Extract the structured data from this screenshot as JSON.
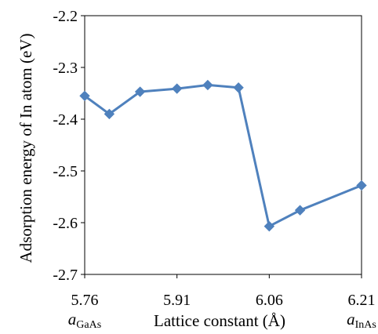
{
  "chart_data": {
    "type": "line",
    "xlabel": "Lattice constant (Å)",
    "ylabel": "Adsorption energy of In atom (eV)",
    "xlim": [
      5.76,
      6.21
    ],
    "ylim": [
      -2.7,
      -2.2
    ],
    "xticks": [
      "5.76",
      "5.91",
      "6.06",
      "6.21"
    ],
    "yticks": [
      "-2.2",
      "-2.3",
      "-2.4",
      "-2.5",
      "-2.6",
      "-2.7"
    ],
    "grid": false,
    "x_annotations": [
      {
        "x": 5.76,
        "main": "a",
        "sub": "GaAs"
      },
      {
        "x": 6.21,
        "main": "a",
        "sub": "InAs"
      }
    ],
    "series": [
      {
        "color": "#4F81BD",
        "marker": "diamond",
        "x": [
          5.76,
          5.8,
          5.85,
          5.91,
          5.96,
          6.01,
          6.06,
          6.11,
          6.21
        ],
        "y": [
          -2.355,
          -2.39,
          -2.347,
          -2.341,
          -2.334,
          -2.339,
          -2.607,
          -2.576,
          -2.528
        ]
      }
    ]
  }
}
